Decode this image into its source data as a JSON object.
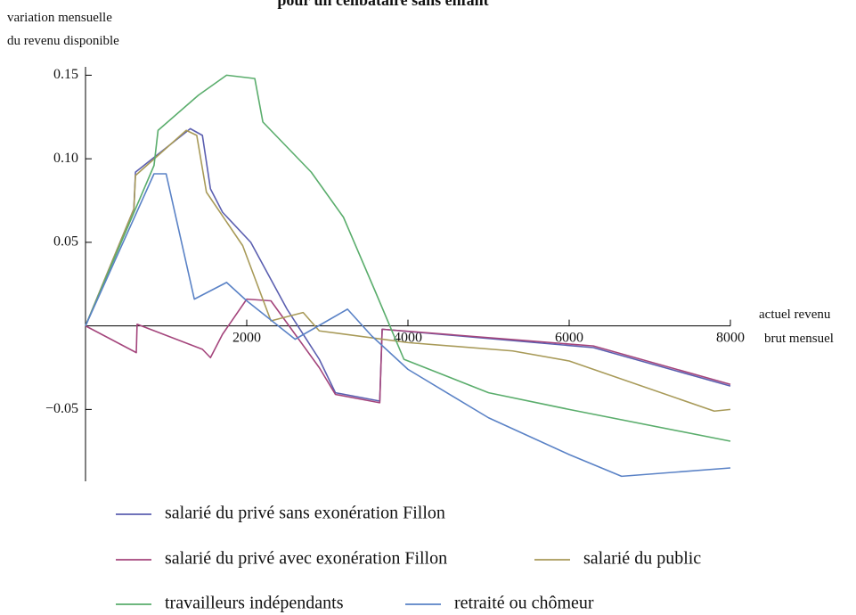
{
  "chart_data": {
    "type": "line",
    "title": "pour un célibataire sans enfant",
    "ylabel": [
      "variation mensuelle",
      "du revenu disponible"
    ],
    "xlabel": [
      "actuel revenu",
      "brut mensuel"
    ],
    "xlim": [
      0,
      8000
    ],
    "ylim": [
      -0.093,
      0.155
    ],
    "xticks": [
      2000,
      4000,
      6000,
      8000
    ],
    "yticks": [
      0.15,
      {
        "value": 0.1,
        "label": "0.10"
      },
      0.05,
      {
        "value": -0.05,
        "label": "−0.05"
      }
    ],
    "series": [
      {
        "name": "salarié du privé sans exonération Fillon",
        "color": "#5b5fb0",
        "x": [
          0,
          600,
          620,
          1300,
          1450,
          1550,
          1700,
          2050,
          2500,
          2900,
          3100,
          3650,
          3680,
          6300,
          8000
        ],
        "values": [
          0,
          0.07,
          0.092,
          0.118,
          0.114,
          0.082,
          0.068,
          0.05,
          0.01,
          -0.02,
          -0.04,
          -0.045,
          -0.002,
          -0.013,
          -0.036
        ]
      },
      {
        "name": "salarié du privé avec exonération Fillon",
        "color": "#a4457c",
        "x": [
          0,
          630,
          640,
          1450,
          1550,
          1700,
          2000,
          2300,
          2600,
          2900,
          3100,
          3650,
          3680,
          6300,
          8000
        ],
        "values": [
          0,
          -0.016,
          0.001,
          -0.014,
          -0.019,
          -0.005,
          0.016,
          0.015,
          -0.005,
          -0.025,
          -0.041,
          -0.046,
          -0.002,
          -0.012,
          -0.035
        ]
      },
      {
        "name": "salarié du public",
        "color": "#a89a58",
        "x": [
          0,
          600,
          620,
          1250,
          1380,
          1500,
          1950,
          2300,
          2700,
          2900,
          4000,
          5300,
          6000,
          7800,
          8000
        ],
        "values": [
          0,
          0.07,
          0.09,
          0.117,
          0.114,
          0.08,
          0.048,
          0.003,
          0.008,
          -0.003,
          -0.01,
          -0.015,
          -0.021,
          -0.051,
          -0.05
        ]
      },
      {
        "name": "travailleurs indépendants",
        "color": "#5aad6c",
        "x": [
          0,
          850,
          900,
          1400,
          1750,
          2100,
          2200,
          2800,
          3200,
          3600,
          3950,
          5000,
          6000,
          8000
        ],
        "values": [
          0,
          0.096,
          0.117,
          0.138,
          0.15,
          0.148,
          0.122,
          0.092,
          0.065,
          0.02,
          -0.02,
          -0.04,
          -0.05,
          -0.069
        ]
      },
      {
        "name": "retraité ou chômeur",
        "color": "#5a82c6",
        "x": [
          0,
          850,
          1000,
          1350,
          1750,
          2000,
          2600,
          3250,
          3550,
          4000,
          5000,
          6000,
          6650,
          8000
        ],
        "values": [
          0,
          0.091,
          0.091,
          0.016,
          0.026,
          0.015,
          -0.008,
          0.01,
          -0.006,
          -0.026,
          -0.055,
          -0.077,
          -0.09,
          -0.085
        ]
      }
    ]
  }
}
